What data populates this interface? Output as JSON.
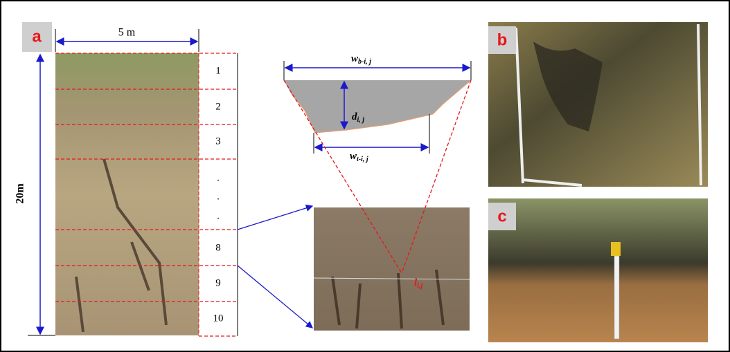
{
  "panel_a": {
    "label": "a",
    "width_label": "5 m",
    "height_label": "20m",
    "segments": [
      "1",
      "2",
      "3",
      ".",
      ".",
      ".",
      "8",
      "9",
      "10"
    ]
  },
  "schematic": {
    "top_width": {
      "main": "w",
      "sub": "b-i, j"
    },
    "depth": {
      "main": "d",
      "sub": "i, j"
    },
    "bottom_width": {
      "main": "w",
      "sub": "t-i, j"
    },
    "length": {
      "main": "l",
      "sub": "i,j"
    }
  },
  "panel_b": {
    "label": "b"
  },
  "panel_c": {
    "label": "c"
  }
}
